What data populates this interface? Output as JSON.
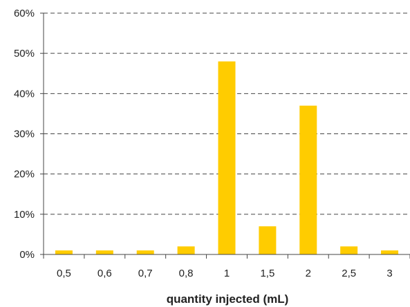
{
  "chart_data": {
    "type": "bar",
    "title": "",
    "xlabel": "quantity injected (mL)",
    "ylabel": "",
    "categories": [
      "0,5",
      "0,6",
      "0,7",
      "0,8",
      "1",
      "1,5",
      "2",
      "2,5",
      "3"
    ],
    "values": [
      1,
      1,
      1,
      2,
      48,
      7,
      37,
      2,
      1
    ],
    "ylim": [
      0,
      60
    ],
    "ytick_values": [
      0,
      10,
      20,
      30,
      40,
      50,
      60
    ],
    "ytick_labels": [
      "0%",
      "10%",
      "20%",
      "30%",
      "40%",
      "50%",
      "60%"
    ],
    "grid": true,
    "grid_style": "dashed",
    "legend": "none",
    "bar_color": "#FFCC00"
  }
}
